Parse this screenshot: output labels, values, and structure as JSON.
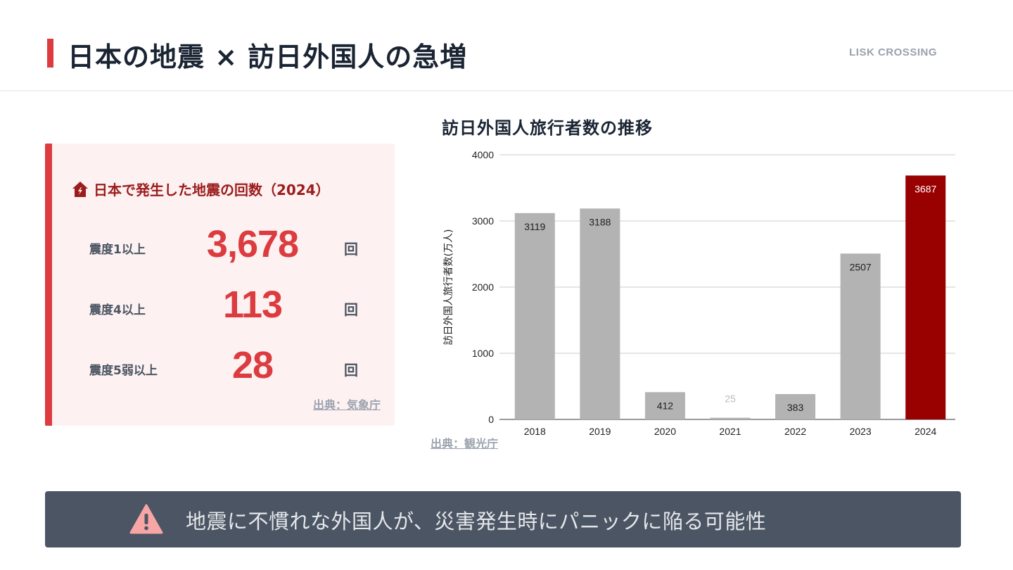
{
  "header": {
    "title": "日本の地震 × 訪日外国人の急増",
    "brand": "LISK CROSSING"
  },
  "stats": {
    "icon": "house-icon",
    "heading": "日本で発生した地震の回数（2024）",
    "rows": [
      {
        "label": "震度1以上",
        "value": "3,678",
        "unit": "回"
      },
      {
        "label": "震度4以上",
        "value": "113",
        "unit": "回"
      },
      {
        "label": "震度5弱以上",
        "value": "28",
        "unit": "回"
      }
    ],
    "source": "出典：気象庁"
  },
  "chart_data": {
    "type": "bar",
    "title": "訪日外国人旅行者数の推移",
    "xlabel": "",
    "ylabel": "訪日外国人旅行者数(万人)",
    "categories": [
      "2018",
      "2019",
      "2020",
      "2021",
      "2022",
      "2023",
      "2024"
    ],
    "values": [
      3119,
      3188,
      412,
      25,
      383,
      2507,
      3687
    ],
    "data_labels": [
      "3119",
      "3188",
      "412",
      "25",
      "383",
      "2507",
      "3687"
    ],
    "ylim": [
      0,
      4000
    ],
    "yticks": [
      "0",
      "1000",
      "2000",
      "3000",
      "4000"
    ],
    "grid": true,
    "highlight_index": 6,
    "colors": {
      "default": "#b3b3b3",
      "highlight": "#990000"
    },
    "source": "出典：観光庁"
  },
  "banner": {
    "icon": "warning-icon",
    "text": "地震に不慣れな外国人が、災害発生時にパニックに陥る可能性"
  }
}
